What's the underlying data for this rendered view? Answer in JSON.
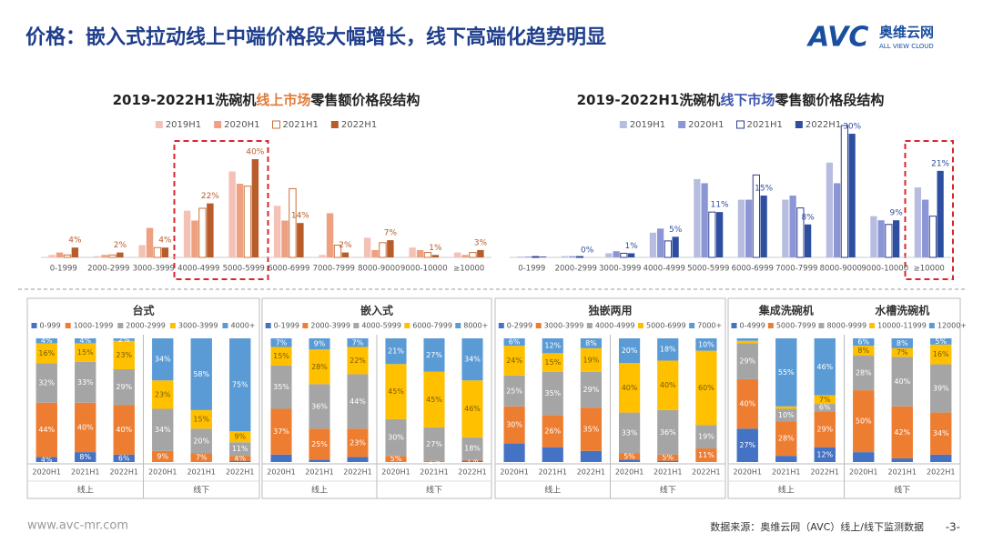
{
  "header": {
    "title": "价格：嵌入式拉动线上中端价格段大幅增长，线下高端化趋势明显",
    "logo_brand": "AVC",
    "logo_cn": "奥维云网",
    "logo_en": "ALL VIEW CLOUD"
  },
  "footer": {
    "website": "www.avc-mr.com",
    "source": "数据来源：奥维云网（AVC）线上/线下监测数据",
    "page": "-3-"
  },
  "chart_data": [
    {
      "type": "bar",
      "title": [
        "2019-2022H1洗碗机",
        "线上市场",
        "零售额价格段结构"
      ],
      "title_highlight_index": 1,
      "title_highlight_color": "#e07b39",
      "categories": [
        "0-1999",
        "2000-2999",
        "3000-3999",
        "4000-4999",
        "5000-5999",
        "6000-6999",
        "7000-7999",
        "8000-9000",
        "9000-10000",
        "≥10000"
      ],
      "highlight_categories": [
        3,
        4
      ],
      "highlight_color": "#d9262c",
      "series": [
        {
          "name": "2019H1",
          "color": "#f4c1b6",
          "values": [
            1,
            0.5,
            5,
            19,
            35,
            21,
            1,
            8,
            4,
            2
          ]
        },
        {
          "name": "2020H1",
          "color": "#eea080",
          "values": [
            2,
            1,
            12,
            15,
            30,
            15,
            18,
            3,
            3,
            1
          ]
        },
        {
          "name": "2021H1",
          "color": "#c9703b",
          "hollow": true,
          "values": [
            1,
            1,
            4,
            20,
            29,
            28,
            5,
            6,
            2,
            2
          ]
        },
        {
          "name": "2022H1",
          "color": "#b85c2a",
          "values": [
            4,
            2,
            4,
            22,
            40,
            14,
            2,
            7,
            1,
            3
          ],
          "value_labels": [
            "4%",
            "2%",
            "4%",
            "22%",
            "40%",
            "14%",
            "2%",
            "7%",
            "1%",
            "3%"
          ]
        }
      ]
    },
    {
      "type": "bar",
      "title": [
        "2019-2022H1洗碗机",
        "线下市场",
        "零售额价格段结构"
      ],
      "title_highlight_index": 1,
      "title_highlight_color": "#3e56b0",
      "categories": [
        "0-1999",
        "2000-2999",
        "3000-3999",
        "4000-4999",
        "5000-5999",
        "6000-6999",
        "7000-7999",
        "8000-9000",
        "9000-10000",
        "≥10000"
      ],
      "highlight_categories": [
        9
      ],
      "highlight_color": "#d9262c",
      "series": [
        {
          "name": "2019H1",
          "color": "#b6bde0",
          "values": [
            0.2,
            0.3,
            1,
            6,
            19,
            14,
            14,
            23,
            10,
            17
          ]
        },
        {
          "name": "2020H1",
          "color": "#8c96d6",
          "values": [
            0.2,
            0.3,
            1.5,
            7,
            18,
            14,
            15,
            18,
            9,
            14
          ]
        },
        {
          "name": "2021H1",
          "color": "#2e3f8f",
          "hollow": true,
          "values": [
            0.2,
            0.2,
            1,
            4,
            11,
            20,
            12,
            32,
            8,
            10
          ]
        },
        {
          "name": "2022H1",
          "color": "#2e4ea0",
          "values": [
            0.2,
            0,
            1,
            5,
            11,
            15,
            8,
            30,
            9,
            21
          ],
          "value_labels": [
            null,
            "0%",
            "1%",
            "5%",
            "11%",
            "15%",
            "8%",
            "30%",
            "9%",
            "21%"
          ]
        }
      ]
    },
    {
      "type": "stacked_bar",
      "title": "台式",
      "categories": [
        "2020H1",
        "2021H1",
        "2022H1",
        "2020H1",
        "2021H1",
        "2022H1"
      ],
      "groups": [
        "线上",
        "线下"
      ],
      "series": [
        {
          "name": "0-999",
          "color": "#4472c4",
          "values": [
            4,
            8,
            6,
            0,
            0,
            1
          ],
          "value_labels": [
            "4%",
            "8%",
            "6%",
            null,
            null,
            null
          ]
        },
        {
          "name": "1000-1999",
          "color": "#ed7d31",
          "values": [
            44,
            40,
            40,
            9,
            7,
            4
          ],
          "value_labels": [
            "44%",
            "40%",
            "40%",
            "9%",
            "7%",
            "4%"
          ]
        },
        {
          "name": "2000-2999",
          "color": "#a5a5a5",
          "values": [
            32,
            33,
            29,
            34,
            20,
            11
          ],
          "value_labels": [
            "32%",
            "33%",
            "29%",
            "34%",
            "20%",
            "11%"
          ]
        },
        {
          "name": "3000-3999",
          "color": "#ffc000",
          "values": [
            16,
            15,
            23,
            23,
            15,
            9
          ],
          "value_labels": [
            "16%",
            "15%",
            "23%",
            "23%",
            "15%",
            "9%"
          ]
        },
        {
          "name": "4000+",
          "color": "#5b9bd5",
          "values": [
            4,
            4,
            2,
            34,
            58,
            75
          ],
          "value_labels": [
            "4%",
            "4%",
            "2%",
            "34%",
            "58%",
            "75%"
          ]
        }
      ]
    },
    {
      "type": "stacked_bar",
      "title": "嵌入式",
      "categories": [
        "2020H1",
        "2021H1",
        "2022H1",
        "2020H1",
        "2021H1",
        "2022H1"
      ],
      "groups": [
        "线上",
        "线下"
      ],
      "series": [
        {
          "name": "0-1999",
          "color": "#4472c4",
          "values": [
            6,
            2,
            4,
            0,
            0,
            1
          ]
        },
        {
          "name": "2000-3999",
          "color": "#ed7d31",
          "values": [
            37,
            25,
            23,
            5,
            1,
            1
          ],
          "value_labels": [
            "37%",
            "25%",
            "23%",
            "5%",
            "1%",
            "1%"
          ]
        },
        {
          "name": "4000-5999",
          "color": "#a5a5a5",
          "values": [
            35,
            36,
            44,
            30,
            27,
            18
          ],
          "value_labels": [
            "35%",
            "36%",
            "44%",
            "30%",
            "27%",
            "18%"
          ]
        },
        {
          "name": "6000-7999",
          "color": "#ffc000",
          "values": [
            15,
            28,
            22,
            45,
            45,
            46
          ],
          "value_labels": [
            "15%",
            "28%",
            "22%",
            "45%",
            "45%",
            "46%"
          ]
        },
        {
          "name": "8000+",
          "color": "#5b9bd5",
          "values": [
            7,
            9,
            7,
            21,
            27,
            34
          ],
          "value_labels": [
            "7%",
            "9%",
            "7%",
            "21%",
            "27%",
            "34%"
          ]
        }
      ]
    },
    {
      "type": "stacked_bar",
      "title": "独嵌两用",
      "categories": [
        "2020H1",
        "2021H1",
        "2022H1",
        "2020H1",
        "2021H1",
        "2022H1"
      ],
      "groups": [
        "线上",
        "线下"
      ],
      "series": [
        {
          "name": "0-2999",
          "color": "#4472c4",
          "values": [
            15,
            12,
            9,
            2,
            1,
            0
          ]
        },
        {
          "name": "3000-3999",
          "color": "#ed7d31",
          "values": [
            30,
            26,
            35,
            5,
            5,
            11
          ],
          "value_labels": [
            "30%",
            "26%",
            "35%",
            "5%",
            "5%",
            "11%"
          ]
        },
        {
          "name": "4000-4999",
          "color": "#a5a5a5",
          "values": [
            25,
            35,
            29,
            33,
            36,
            19
          ],
          "value_labels": [
            "25%",
            "35%",
            "29%",
            "33%",
            "36%",
            "19%"
          ]
        },
        {
          "name": "5000-6999",
          "color": "#ffc000",
          "values": [
            24,
            15,
            19,
            40,
            40,
            60
          ],
          "value_labels": [
            "24%",
            "15%",
            "19%",
            "40%",
            "40%",
            "60%"
          ]
        },
        {
          "name": "7000+",
          "color": "#5b9bd5",
          "values": [
            6,
            12,
            8,
            20,
            18,
            10
          ],
          "value_labels": [
            "6%",
            "12%",
            "8%",
            "20%",
            "18%",
            "10%"
          ]
        }
      ]
    },
    {
      "type": "stacked_bar",
      "title": [
        "集成洗碗机",
        "水槽洗碗机"
      ],
      "categories": [
        "2020H1",
        "2021H1",
        "2022H1",
        "2020H1",
        "2021H1",
        "2022H1"
      ],
      "groups": [
        "线上",
        "线下"
      ],
      "series": [
        {
          "name": "0-4999",
          "color": "#4472c4",
          "values": [
            27,
            5,
            12,
            8,
            3,
            6
          ],
          "value_labels": [
            "27%",
            null,
            "12%",
            null,
            null,
            null
          ]
        },
        {
          "name": "5000-7999",
          "color": "#ed7d31",
          "values": [
            40,
            28,
            29,
            50,
            42,
            34
          ],
          "value_labels": [
            "40%",
            "28%",
            "29%",
            "50%",
            "42%",
            "34%"
          ]
        },
        {
          "name": "8000-9999",
          "color": "#a5a5a5",
          "values": [
            29,
            10,
            6,
            28,
            40,
            39
          ],
          "value_labels": [
            "29%",
            "10%",
            "6%",
            "28%",
            "40%",
            "39%"
          ]
        },
        {
          "name": "10000-11999",
          "color": "#ffc000",
          "values": [
            2,
            2,
            7,
            8,
            7,
            16
          ],
          "value_labels": [
            null,
            null,
            "7%",
            "8%",
            "7%",
            "16%"
          ]
        },
        {
          "name": "12000+",
          "color": "#5b9bd5",
          "values": [
            2,
            55,
            46,
            6,
            8,
            5
          ],
          "value_labels": [
            null,
            "55%",
            "46%",
            "6%",
            "8%",
            "5%"
          ]
        }
      ]
    }
  ]
}
